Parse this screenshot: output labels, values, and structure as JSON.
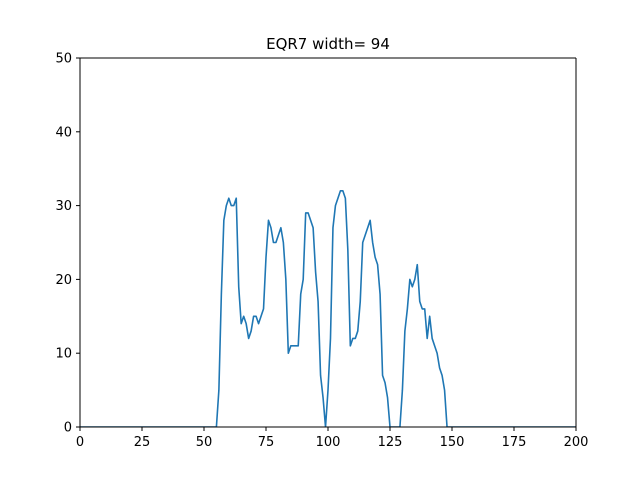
{
  "chart_data": {
    "type": "line",
    "title": "EQR7 width= 94",
    "xlabel": "",
    "ylabel": "",
    "xlim": [
      0,
      200
    ],
    "ylim": [
      0,
      50
    ],
    "xticks": [
      0,
      25,
      50,
      75,
      100,
      125,
      150,
      175,
      200
    ],
    "yticks": [
      0,
      10,
      20,
      30,
      40,
      50
    ],
    "grid": false,
    "line_color": "#1f77b4",
    "series": [
      {
        "x": [
          0,
          1,
          2,
          3,
          4,
          5,
          6,
          7,
          8,
          9,
          10,
          11,
          12,
          13,
          14,
          15,
          16,
          17,
          18,
          19,
          20,
          21,
          22,
          23,
          24,
          25,
          26,
          27,
          28,
          29,
          30,
          31,
          32,
          33,
          34,
          35,
          36,
          37,
          38,
          39,
          40,
          41,
          42,
          43,
          44,
          45,
          46,
          47,
          48,
          49,
          50,
          51,
          52,
          53,
          54,
          55,
          56,
          57,
          58,
          59,
          60,
          61,
          62,
          63,
          64,
          65,
          66,
          67,
          68,
          69,
          70,
          71,
          72,
          73,
          74,
          75,
          76,
          77,
          78,
          79,
          80,
          81,
          82,
          83,
          84,
          85,
          86,
          87,
          88,
          89,
          90,
          91,
          92,
          93,
          94,
          95,
          96,
          97,
          98,
          99,
          100,
          101,
          102,
          103,
          104,
          105,
          106,
          107,
          108,
          109,
          110,
          111,
          112,
          113,
          114,
          115,
          116,
          117,
          118,
          119,
          120,
          121,
          122,
          123,
          124,
          125,
          126,
          127,
          128,
          129,
          130,
          131,
          132,
          133,
          134,
          135,
          136,
          137,
          138,
          139,
          140,
          141,
          142,
          143,
          144,
          145,
          146,
          147,
          148,
          149,
          150,
          151,
          152,
          153,
          154,
          155,
          156,
          157,
          158,
          159,
          160,
          161,
          162,
          163,
          164,
          165,
          166,
          167,
          168,
          169,
          170,
          171,
          172,
          173,
          174,
          175,
          176,
          177,
          178,
          179,
          180,
          181,
          182,
          183,
          184,
          185,
          186,
          187,
          188,
          189,
          190,
          191,
          192,
          193,
          194,
          195,
          196,
          197,
          198,
          199,
          200
        ],
        "y": [
          0,
          0,
          0,
          0,
          0,
          0,
          0,
          0,
          0,
          0,
          0,
          0,
          0,
          0,
          0,
          0,
          0,
          0,
          0,
          0,
          0,
          0,
          0,
          0,
          0,
          0,
          0,
          0,
          0,
          0,
          0,
          0,
          0,
          0,
          0,
          0,
          0,
          0,
          0,
          0,
          0,
          0,
          0,
          0,
          0,
          0,
          0,
          0,
          0,
          0,
          0,
          0,
          0,
          0,
          0,
          0,
          5,
          18,
          28,
          30,
          31,
          30,
          30,
          31,
          19,
          14,
          15,
          14,
          12,
          13,
          15,
          15,
          14,
          15,
          16,
          23,
          28,
          27,
          25,
          25,
          26,
          27,
          25,
          20,
          10,
          11,
          11,
          11,
          11,
          18,
          20,
          29,
          29,
          28,
          27,
          21,
          17,
          7,
          4,
          0,
          5,
          12,
          27,
          30,
          31,
          32,
          32,
          31,
          24,
          11,
          12,
          12,
          13,
          17,
          25,
          26,
          27,
          28,
          25,
          23,
          22,
          18,
          7,
          6,
          4,
          0,
          0,
          0,
          0,
          0,
          5,
          13,
          16,
          20,
          19,
          20,
          22,
          17,
          16,
          16,
          12,
          15,
          12,
          11,
          10,
          8,
          7,
          5,
          0,
          0,
          0,
          0,
          0,
          0,
          0,
          0,
          0,
          0,
          0,
          0,
          0,
          0,
          0,
          0,
          0,
          0,
          0,
          0,
          0,
          0,
          0,
          0,
          0,
          0,
          0,
          0,
          0,
          0,
          0,
          0,
          0,
          0,
          0,
          0,
          0,
          0,
          0,
          0,
          0,
          0,
          0,
          0,
          0,
          0,
          0,
          0,
          0,
          0,
          0,
          0,
          0
        ]
      }
    ]
  }
}
